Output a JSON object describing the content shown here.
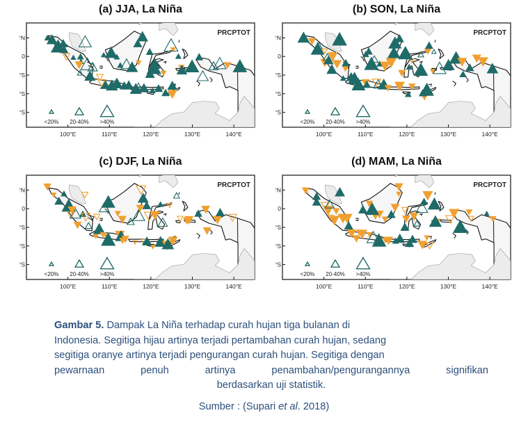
{
  "panels": [
    {
      "title": "(a) JJA, La Niña",
      "green": 46,
      "orange": 12
    },
    {
      "title": "(b) SON, La Niña",
      "green": 40,
      "orange": 24
    },
    {
      "title": "(c) DJF, La Niña",
      "green": 22,
      "orange": 34
    },
    {
      "title": "(d) MAM, La Niña",
      "green": 28,
      "orange": 30
    }
  ],
  "map": {
    "index_label": "PRCPTOT",
    "lat_ticks": [
      "5°N",
      "0",
      "5°S",
      "10°S",
      "15°S"
    ],
    "lon_ticks": [
      "100°E",
      "110°E",
      "120°E",
      "130°E",
      "140°E"
    ],
    "legend": [
      "<20%",
      "20-40%",
      ">40%"
    ],
    "colors": {
      "increase": "#1f6b68",
      "decrease": "#f0a030",
      "land": "#ececec",
      "outline": "#111111"
    }
  },
  "caption": {
    "label": "Gambar 5.",
    "lines": [
      " Dampak La Niña terhadap curah hujan tiga bulanan di",
      "Indonesia. Segitiga hijau artinya terjadi pertambahan curah hujan, sedang",
      "segitiga oranye artinya terjadi pengurangan curah hujan. Segitiga dengan",
      "pewarnaan penuh artinya penambahan/pengurangannya signifikan",
      "berdasarkan uji statistik."
    ],
    "source_prefix": "Sumber : (Supari ",
    "source_italic": "et al",
    "source_suffix": ". 2018)"
  }
}
